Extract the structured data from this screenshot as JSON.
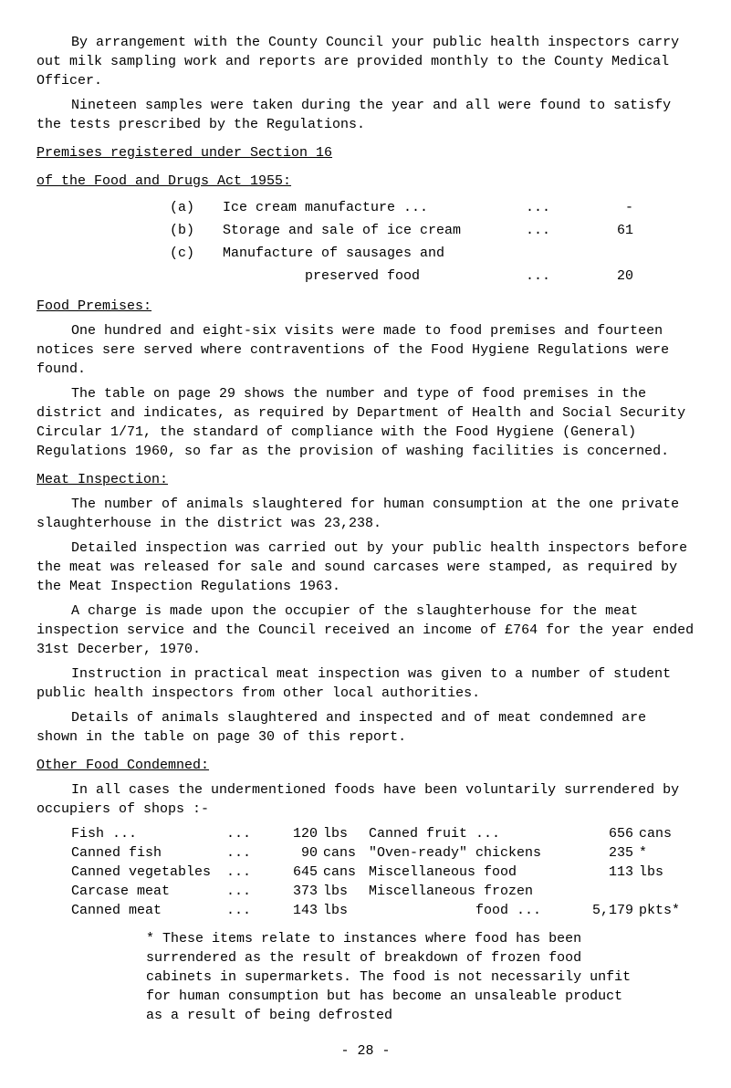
{
  "para1": "By arrangement with the County Council your public health inspectors carry out milk sampling work and reports are provided monthly to the County Medical Officer.",
  "para2": "Nineteen samples were taken during the year and all were found to satisfy the tests prescribed by the Regulations.",
  "head1": "Premises registered under Section 16",
  "head2": "of the Food and Drugs Act 1955:",
  "reg": {
    "a": {
      "k": "(a)",
      "t": "Ice cream manufacture  ...",
      "d": "...",
      "v": "-"
    },
    "b": {
      "k": "(b)",
      "t": "Storage and sale of ice cream",
      "d": "...",
      "v": "61"
    },
    "c1": {
      "k": "(c)",
      "t": "Manufacture of sausages and",
      "d": "",
      "v": ""
    },
    "c2": {
      "k": "",
      "t": "          preserved food",
      "d": "...",
      "v": "20"
    }
  },
  "head3": "Food Premises:",
  "para3": "One hundred and eight-six visits were made to food premises and fourteen notices sere served where contraventions of the Food Hygiene Regulations were found.",
  "para4": "The table on page 29 shows the number and type of food premises in the district and indicates, as required by Department of Health and Social Security Circular 1/71, the standard of compliance with the Food Hygiene (General) Regulations 1960, so far as the provision of washing facilities is concerned.",
  "head4": "Meat Inspection:",
  "para5": "The number of animals slaughtered for human consumption at the one private slaughterhouse in the district was 23,238.",
  "para6": "Detailed inspection was carried out by your public health inspectors before the meat was released for sale and sound carcases were stamped, as required by the Meat Inspection Regulations 1963.",
  "para7": "A charge is made upon the occupier of the slaughterhouse for the meat inspection service and the Council received an income of £764 for the year ended 31st Decerber, 1970.",
  "para8": "Instruction in practical meat inspection was given to a number of student public health inspectors from other local authorities.",
  "para9": "Details of animals slaughtered and inspected and of meat condemned are shown in the table on page 30 of this report.",
  "head5": "Other Food Condemned:",
  "para10": "In all cases the undermentioned foods have been voluntarily surrendered by occupiers of shops :-",
  "foods": {
    "r1": {
      "a": "Fish   ...",
      "b": "...",
      "c": "120",
      "d": "lbs",
      "e": "Canned fruit       ...",
      "f": "656",
      "g": "cans"
    },
    "r2": {
      "a": "Canned fish",
      "b": "...",
      "c": "90",
      "d": "cans",
      "e": "\"Oven-ready\" chickens",
      "f": "235",
      "g": "*"
    },
    "r3": {
      "a": "Canned vegetables",
      "b": "...",
      "c": "645",
      "d": "cans",
      "e": "Miscellaneous food",
      "f": "113",
      "g": "lbs"
    },
    "r4": {
      "a": "Carcase meat",
      "b": "...",
      "c": "373",
      "d": "lbs",
      "e": "Miscellaneous frozen",
      "f": "",
      "g": ""
    },
    "r5": {
      "a": "Canned meat",
      "b": "...",
      "c": "143",
      "d": "lbs",
      "e": "             food ...",
      "f": "5,179",
      "g": "pkts*"
    }
  },
  "note": "* These items relate to instances where food has been surrendered as the result of breakdown of frozen food cabinets in supermarkets.  The food is not neces­sarily unfit for human consumption but has become an unsaleable product as a result of being defrosted",
  "pagenum": "-  28  -"
}
